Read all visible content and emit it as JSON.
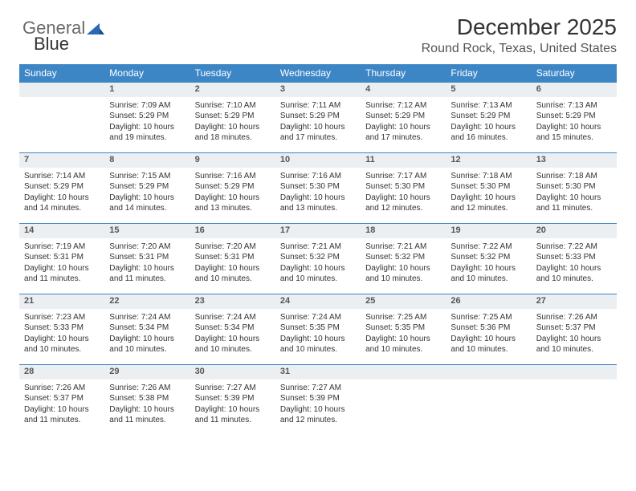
{
  "logo": {
    "text1": "General",
    "text2": "Blue"
  },
  "header": {
    "title": "December 2025",
    "subtitle": "Round Rock, Texas, United States"
  },
  "colors": {
    "header_bg": "#3d86c6",
    "header_text": "#ffffff",
    "daynum_bg": "#eceff2",
    "daynum_border": "#3d86c6",
    "body_bg": "#ffffff",
    "text": "#333333",
    "logo_gray": "#6a6a6a",
    "logo_blue": "#2a68b3"
  },
  "weekdays": [
    "Sunday",
    "Monday",
    "Tuesday",
    "Wednesday",
    "Thursday",
    "Friday",
    "Saturday"
  ],
  "weeks": [
    [
      null,
      {
        "day": "1",
        "sunrise": "Sunrise: 7:09 AM",
        "sunset": "Sunset: 5:29 PM",
        "daylight": "Daylight: 10 hours and 19 minutes."
      },
      {
        "day": "2",
        "sunrise": "Sunrise: 7:10 AM",
        "sunset": "Sunset: 5:29 PM",
        "daylight": "Daylight: 10 hours and 18 minutes."
      },
      {
        "day": "3",
        "sunrise": "Sunrise: 7:11 AM",
        "sunset": "Sunset: 5:29 PM",
        "daylight": "Daylight: 10 hours and 17 minutes."
      },
      {
        "day": "4",
        "sunrise": "Sunrise: 7:12 AM",
        "sunset": "Sunset: 5:29 PM",
        "daylight": "Daylight: 10 hours and 17 minutes."
      },
      {
        "day": "5",
        "sunrise": "Sunrise: 7:13 AM",
        "sunset": "Sunset: 5:29 PM",
        "daylight": "Daylight: 10 hours and 16 minutes."
      },
      {
        "day": "6",
        "sunrise": "Sunrise: 7:13 AM",
        "sunset": "Sunset: 5:29 PM",
        "daylight": "Daylight: 10 hours and 15 minutes."
      }
    ],
    [
      {
        "day": "7",
        "sunrise": "Sunrise: 7:14 AM",
        "sunset": "Sunset: 5:29 PM",
        "daylight": "Daylight: 10 hours and 14 minutes."
      },
      {
        "day": "8",
        "sunrise": "Sunrise: 7:15 AM",
        "sunset": "Sunset: 5:29 PM",
        "daylight": "Daylight: 10 hours and 14 minutes."
      },
      {
        "day": "9",
        "sunrise": "Sunrise: 7:16 AM",
        "sunset": "Sunset: 5:29 PM",
        "daylight": "Daylight: 10 hours and 13 minutes."
      },
      {
        "day": "10",
        "sunrise": "Sunrise: 7:16 AM",
        "sunset": "Sunset: 5:30 PM",
        "daylight": "Daylight: 10 hours and 13 minutes."
      },
      {
        "day": "11",
        "sunrise": "Sunrise: 7:17 AM",
        "sunset": "Sunset: 5:30 PM",
        "daylight": "Daylight: 10 hours and 12 minutes."
      },
      {
        "day": "12",
        "sunrise": "Sunrise: 7:18 AM",
        "sunset": "Sunset: 5:30 PM",
        "daylight": "Daylight: 10 hours and 12 minutes."
      },
      {
        "day": "13",
        "sunrise": "Sunrise: 7:18 AM",
        "sunset": "Sunset: 5:30 PM",
        "daylight": "Daylight: 10 hours and 11 minutes."
      }
    ],
    [
      {
        "day": "14",
        "sunrise": "Sunrise: 7:19 AM",
        "sunset": "Sunset: 5:31 PM",
        "daylight": "Daylight: 10 hours and 11 minutes."
      },
      {
        "day": "15",
        "sunrise": "Sunrise: 7:20 AM",
        "sunset": "Sunset: 5:31 PM",
        "daylight": "Daylight: 10 hours and 11 minutes."
      },
      {
        "day": "16",
        "sunrise": "Sunrise: 7:20 AM",
        "sunset": "Sunset: 5:31 PM",
        "daylight": "Daylight: 10 hours and 10 minutes."
      },
      {
        "day": "17",
        "sunrise": "Sunrise: 7:21 AM",
        "sunset": "Sunset: 5:32 PM",
        "daylight": "Daylight: 10 hours and 10 minutes."
      },
      {
        "day": "18",
        "sunrise": "Sunrise: 7:21 AM",
        "sunset": "Sunset: 5:32 PM",
        "daylight": "Daylight: 10 hours and 10 minutes."
      },
      {
        "day": "19",
        "sunrise": "Sunrise: 7:22 AM",
        "sunset": "Sunset: 5:32 PM",
        "daylight": "Daylight: 10 hours and 10 minutes."
      },
      {
        "day": "20",
        "sunrise": "Sunrise: 7:22 AM",
        "sunset": "Sunset: 5:33 PM",
        "daylight": "Daylight: 10 hours and 10 minutes."
      }
    ],
    [
      {
        "day": "21",
        "sunrise": "Sunrise: 7:23 AM",
        "sunset": "Sunset: 5:33 PM",
        "daylight": "Daylight: 10 hours and 10 minutes."
      },
      {
        "day": "22",
        "sunrise": "Sunrise: 7:24 AM",
        "sunset": "Sunset: 5:34 PM",
        "daylight": "Daylight: 10 hours and 10 minutes."
      },
      {
        "day": "23",
        "sunrise": "Sunrise: 7:24 AM",
        "sunset": "Sunset: 5:34 PM",
        "daylight": "Daylight: 10 hours and 10 minutes."
      },
      {
        "day": "24",
        "sunrise": "Sunrise: 7:24 AM",
        "sunset": "Sunset: 5:35 PM",
        "daylight": "Daylight: 10 hours and 10 minutes."
      },
      {
        "day": "25",
        "sunrise": "Sunrise: 7:25 AM",
        "sunset": "Sunset: 5:35 PM",
        "daylight": "Daylight: 10 hours and 10 minutes."
      },
      {
        "day": "26",
        "sunrise": "Sunrise: 7:25 AM",
        "sunset": "Sunset: 5:36 PM",
        "daylight": "Daylight: 10 hours and 10 minutes."
      },
      {
        "day": "27",
        "sunrise": "Sunrise: 7:26 AM",
        "sunset": "Sunset: 5:37 PM",
        "daylight": "Daylight: 10 hours and 10 minutes."
      }
    ],
    [
      {
        "day": "28",
        "sunrise": "Sunrise: 7:26 AM",
        "sunset": "Sunset: 5:37 PM",
        "daylight": "Daylight: 10 hours and 11 minutes."
      },
      {
        "day": "29",
        "sunrise": "Sunrise: 7:26 AM",
        "sunset": "Sunset: 5:38 PM",
        "daylight": "Daylight: 10 hours and 11 minutes."
      },
      {
        "day": "30",
        "sunrise": "Sunrise: 7:27 AM",
        "sunset": "Sunset: 5:39 PM",
        "daylight": "Daylight: 10 hours and 11 minutes."
      },
      {
        "day": "31",
        "sunrise": "Sunrise: 7:27 AM",
        "sunset": "Sunset: 5:39 PM",
        "daylight": "Daylight: 10 hours and 12 minutes."
      },
      null,
      null,
      null
    ]
  ]
}
